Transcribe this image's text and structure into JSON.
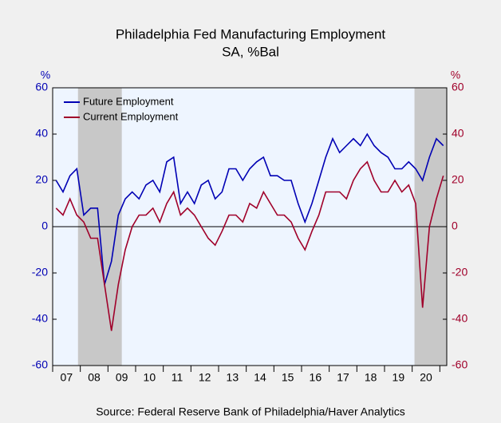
{
  "chart_data": {
    "type": "line",
    "title": "Philadelphia Fed Manufacturing Employment",
    "subtitle": "SA, %Bal",
    "y_label": "%",
    "y2_label": "%",
    "source": "Source:  Federal Reserve Bank of Philadelphia/Haver Analytics",
    "categories": [
      null,
      null,
      "07",
      null,
      null,
      null,
      "08",
      null,
      null,
      null,
      "09",
      null,
      null,
      null,
      "10",
      null,
      null,
      null,
      "11",
      null,
      null,
      null,
      "12",
      null,
      null,
      null,
      "13",
      null,
      null,
      null,
      "14",
      null,
      null,
      null,
      "15",
      null,
      null,
      null,
      "16",
      null,
      null,
      null,
      "17",
      null,
      null,
      null,
      "18",
      null,
      null,
      null,
      "19",
      null,
      null,
      null,
      "20",
      null,
      null
    ],
    "series": [
      {
        "name": "Future Employment",
        "color": "#0000b4",
        "values": [
          20,
          15,
          22,
          25,
          5,
          8,
          8,
          -25,
          -15,
          5,
          12,
          15,
          12,
          18,
          20,
          15,
          28,
          30,
          10,
          15,
          10,
          18,
          20,
          12,
          15,
          25,
          25,
          20,
          25,
          28,
          30,
          22,
          22,
          20,
          20,
          10,
          2,
          10,
          20,
          30,
          38,
          32,
          35,
          38,
          35,
          40,
          35,
          32,
          30,
          25,
          25,
          28,
          25,
          20,
          30,
          38,
          35
        ]
      },
      {
        "name": "Current Employment",
        "color": "#a0002a",
        "axis": "y2",
        "values": [
          8,
          5,
          12,
          5,
          2,
          -5,
          -5,
          -25,
          -45,
          -25,
          -10,
          0,
          5,
          5,
          8,
          2,
          10,
          15,
          5,
          8,
          5,
          0,
          -5,
          -8,
          -2,
          5,
          5,
          2,
          10,
          8,
          15,
          10,
          5,
          5,
          2,
          -5,
          -10,
          -2,
          5,
          15,
          15,
          15,
          12,
          20,
          25,
          28,
          20,
          15,
          15,
          20,
          15,
          18,
          10,
          -35,
          0,
          12,
          22
        ]
      }
    ],
    "ylim": [
      -60,
      60
    ],
    "yticks": [
      -60,
      -40,
      -20,
      0,
      20,
      40,
      60
    ],
    "y2lim": [
      -60,
      60
    ],
    "y2ticks": [
      -60,
      -40,
      -20,
      0,
      20,
      40,
      60
    ],
    "legend": "upper left"
  }
}
